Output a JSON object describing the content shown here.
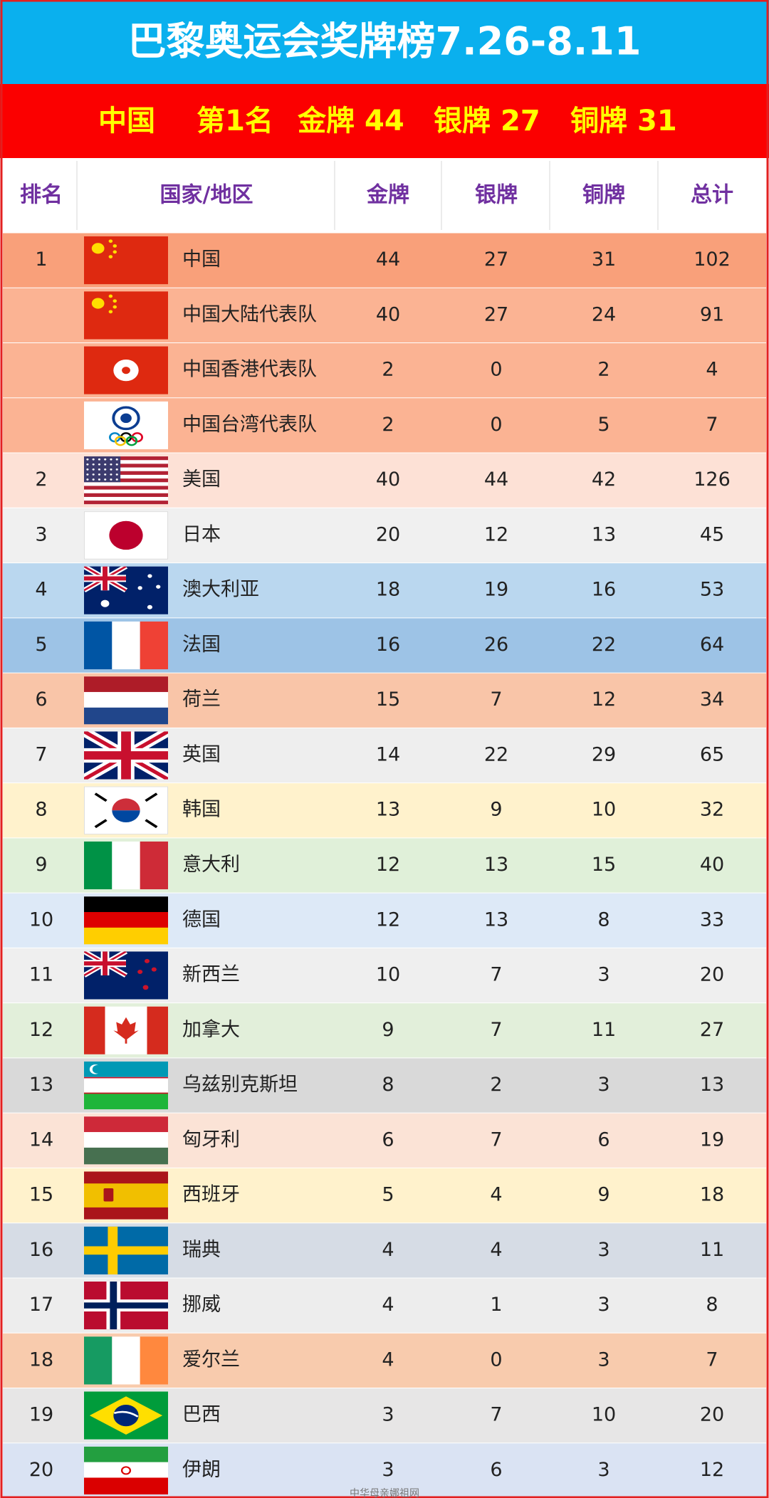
{
  "title": "巴黎奥运会奖牌榜7.26-8.11",
  "banner": {
    "country": "中国",
    "place": "第1名",
    "items": [
      {
        "label": "金牌",
        "value": 44
      },
      {
        "label": "银牌",
        "value": 27
      },
      {
        "label": "铜牌",
        "value": 31
      }
    ]
  },
  "table": {
    "columns": [
      "排名",
      "国家/地区",
      "金牌",
      "银牌",
      "铜牌",
      "总计"
    ],
    "rows": [
      [
        1,
        "中国",
        44,
        27,
        31,
        102
      ],
      [
        null,
        "中国大陆代表队",
        40,
        27,
        24,
        91
      ],
      [
        null,
        "中国香港代表队",
        2,
        0,
        2,
        4
      ],
      [
        null,
        "中国台湾代表队",
        2,
        0,
        5,
        7
      ],
      [
        2,
        "美国",
        40,
        44,
        42,
        126
      ],
      [
        3,
        "日本",
        20,
        12,
        13,
        45
      ],
      [
        4,
        "澳大利亚",
        18,
        19,
        16,
        53
      ],
      [
        5,
        "法国",
        16,
        26,
        22,
        64
      ],
      [
        6,
        "荷兰",
        15,
        7,
        12,
        34
      ],
      [
        7,
        "英国",
        14,
        22,
        29,
        65
      ],
      [
        8,
        "韩国",
        13,
        9,
        10,
        32
      ],
      [
        9,
        "意大利",
        12,
        13,
        15,
        40
      ],
      [
        10,
        "德国",
        12,
        13,
        8,
        33
      ],
      [
        11,
        "新西兰",
        10,
        7,
        3,
        20
      ],
      [
        12,
        "加拿大",
        9,
        7,
        11,
        27
      ],
      [
        13,
        "乌兹别克斯坦",
        8,
        2,
        3,
        13
      ],
      [
        14,
        "匈牙利",
        6,
        7,
        6,
        19
      ],
      [
        15,
        "西班牙",
        5,
        4,
        9,
        18
      ],
      [
        16,
        "瑞典",
        4,
        4,
        3,
        11
      ],
      [
        17,
        "挪威",
        4,
        1,
        3,
        8
      ],
      [
        18,
        "爱尔兰",
        4,
        0,
        3,
        7
      ],
      [
        19,
        "巴西",
        3,
        7,
        10,
        20
      ],
      [
        20,
        "伊朗",
        3,
        6,
        3,
        12
      ]
    ]
  },
  "watermark": "中华母亲娜祖网"
}
